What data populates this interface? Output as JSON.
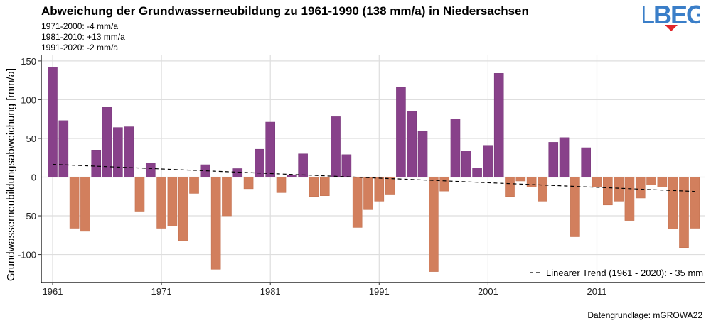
{
  "header": {
    "title": "Abweichung der Grundwasserneubildung zu 1961-1990 (138 mm/a) in Niedersachsen",
    "subtitles": [
      "1971-2000: -4 mm/a",
      "1981-2010: +13 mm/a",
      "1991-2020: -2 mm/a"
    ],
    "logo_text": "LBEG"
  },
  "footer": {
    "source": "Datengrundlage: mGROWA22"
  },
  "colors": {
    "positive": "#88418a",
    "negative": "#d27f5d",
    "logo_blue": "#3a7ec8",
    "logo_red": "#e2262b"
  },
  "chart_data": {
    "type": "bar",
    "title": "Abweichung der Grundwasserneubildung zu 1961-1990 (138 mm/a) in Niedersachsen",
    "xlabel": "",
    "ylabel": "Grundwasserneubildungsabweichung [mm/a]",
    "ylim": [
      -130,
      155
    ],
    "yticks": [
      -100,
      -50,
      0,
      50,
      100,
      150
    ],
    "xticks": [
      1961,
      1971,
      1981,
      1991,
      2001,
      2011
    ],
    "grid": true,
    "x": [
      1961,
      1962,
      1963,
      1964,
      1965,
      1966,
      1967,
      1968,
      1969,
      1970,
      1971,
      1972,
      1973,
      1974,
      1975,
      1976,
      1977,
      1978,
      1979,
      1980,
      1981,
      1982,
      1983,
      1984,
      1985,
      1986,
      1987,
      1988,
      1989,
      1990,
      1991,
      1992,
      1993,
      1994,
      1995,
      1996,
      1997,
      1998,
      1999,
      2000,
      2001,
      2002,
      2003,
      2004,
      2005,
      2006,
      2007,
      2008,
      2009,
      2010,
      2011,
      2012,
      2013,
      2014,
      2015,
      2016,
      2017,
      2018,
      2019,
      2020
    ],
    "values": [
      142,
      73,
      -66,
      -70,
      35,
      90,
      64,
      65,
      -44,
      18,
      -66,
      -63,
      -82,
      -21,
      16,
      -119,
      -50,
      11,
      -15,
      36,
      71,
      -20,
      3,
      30,
      -25,
      -24,
      78,
      29,
      -65,
      -42,
      -31,
      -22,
      116,
      85,
      59,
      -122,
      -18,
      75,
      34,
      12,
      41,
      134,
      -25,
      -5,
      -13,
      -31,
      45,
      51,
      -77,
      38,
      -13,
      -36,
      -31,
      -56,
      -27,
      -10,
      -13,
      -67,
      -91,
      -66
    ],
    "trend": {
      "label": "Linearer Trend (1961 - 2020): - 35 mm",
      "start": {
        "x": 1961,
        "y": 16.5
      },
      "end": {
        "x": 2020,
        "y": -18.5
      }
    },
    "legend_position": "bottom-right"
  }
}
